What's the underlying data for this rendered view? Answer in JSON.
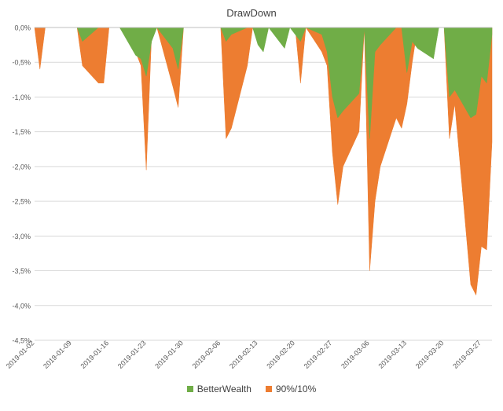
{
  "chart_data": {
    "type": "area",
    "title": "DrawDown",
    "xlabel": "",
    "ylabel": "",
    "ylim": [
      -4.5,
      0
    ],
    "yticks": [
      "0,0%",
      "-0,5%",
      "-1,0%",
      "-1,5%",
      "-2,0%",
      "-2,5%",
      "-3,0%",
      "-3,5%",
      "-4,0%",
      "-4,5%"
    ],
    "xlim": [
      "2019-01-02",
      "2019-03-29"
    ],
    "xticks": [
      "2019-01-02",
      "2019-01-09",
      "2019-01-16",
      "2019-01-23",
      "2019-01-30",
      "2019-02-06",
      "2019-02-13",
      "2019-02-20",
      "2019-02-27",
      "2019-03-06",
      "2019-03-13",
      "2019-03-20",
      "2019-03-27"
    ],
    "grid": true,
    "legend_position": "bottom",
    "series": [
      {
        "name": "90%/10%",
        "color": "#ED7D31",
        "points": [
          [
            "2019-01-02",
            0
          ],
          [
            "2019-01-03",
            -0.6
          ],
          [
            "2019-01-04",
            0
          ],
          [
            "2019-01-08",
            0
          ],
          [
            "2019-01-09",
            0
          ],
          [
            "2019-01-10",
            0
          ],
          [
            "2019-01-11",
            -0.55
          ],
          [
            "2019-01-14",
            -0.8
          ],
          [
            "2019-01-15",
            -0.8
          ],
          [
            "2019-01-16",
            0
          ],
          [
            "2019-01-18",
            0
          ],
          [
            "2019-01-21",
            -0.35
          ],
          [
            "2019-01-22",
            -0.55
          ],
          [
            "2019-01-23",
            -2.05
          ],
          [
            "2019-01-24",
            -0.1
          ],
          [
            "2019-01-25",
            0
          ],
          [
            "2019-01-28",
            -0.85
          ],
          [
            "2019-01-29",
            -1.15
          ],
          [
            "2019-01-30",
            0
          ],
          [
            "2019-02-06",
            0
          ],
          [
            "2019-02-07",
            -1.6
          ],
          [
            "2019-02-08",
            -1.45
          ],
          [
            "2019-02-11",
            -0.55
          ],
          [
            "2019-02-12",
            0
          ],
          [
            "2019-02-13",
            -0.15
          ],
          [
            "2019-02-14",
            -0.3
          ],
          [
            "2019-02-15",
            0
          ],
          [
            "2019-02-20",
            0
          ],
          [
            "2019-02-21",
            -0.8
          ],
          [
            "2019-02-22",
            0
          ],
          [
            "2019-02-25",
            -0.35
          ],
          [
            "2019-02-26",
            -0.55
          ],
          [
            "2019-02-27",
            -1.8
          ],
          [
            "2019-02-28",
            -2.55
          ],
          [
            "2019-03-01",
            -2.0
          ],
          [
            "2019-03-04",
            -1.5
          ],
          [
            "2019-03-05",
            0
          ],
          [
            "2019-03-06",
            -3.5
          ],
          [
            "2019-03-07",
            -2.5
          ],
          [
            "2019-03-08",
            -2.0
          ],
          [
            "2019-03-11",
            -1.3
          ],
          [
            "2019-03-12",
            -1.45
          ],
          [
            "2019-03-13",
            -1.1
          ],
          [
            "2019-03-14",
            -0.5
          ],
          [
            "2019-03-15",
            0
          ],
          [
            "2019-03-20",
            0
          ],
          [
            "2019-03-21",
            -1.6
          ],
          [
            "2019-03-22",
            -1.1
          ],
          [
            "2019-03-25",
            -3.7
          ],
          [
            "2019-03-26",
            -3.85
          ],
          [
            "2019-03-27",
            -3.15
          ],
          [
            "2019-03-28",
            -3.2
          ],
          [
            "2019-03-29",
            -1.65
          ]
        ]
      },
      {
        "name": "BetterWealth",
        "color": "#70AD47",
        "points": [
          [
            "2019-01-02",
            0
          ],
          [
            "2019-01-09",
            0
          ],
          [
            "2019-01-10",
            0
          ],
          [
            "2019-01-11",
            -0.2
          ],
          [
            "2019-01-14",
            0
          ],
          [
            "2019-01-16",
            0
          ],
          [
            "2019-01-18",
            0
          ],
          [
            "2019-01-21",
            -0.4
          ],
          [
            "2019-01-22",
            -0.45
          ],
          [
            "2019-01-23",
            -0.7
          ],
          [
            "2019-01-24",
            -0.2
          ],
          [
            "2019-01-25",
            0
          ],
          [
            "2019-01-28",
            -0.3
          ],
          [
            "2019-01-29",
            -0.6
          ],
          [
            "2019-01-30",
            0
          ],
          [
            "2019-02-06",
            0
          ],
          [
            "2019-02-07",
            -0.2
          ],
          [
            "2019-02-08",
            -0.1
          ],
          [
            "2019-02-11",
            0
          ],
          [
            "2019-02-12",
            0
          ],
          [
            "2019-02-13",
            -0.25
          ],
          [
            "2019-02-14",
            -0.35
          ],
          [
            "2019-02-15",
            0
          ],
          [
            "2019-02-18",
            -0.3
          ],
          [
            "2019-02-19",
            0
          ],
          [
            "2019-02-20",
            -0.1
          ],
          [
            "2019-02-21",
            -0.2
          ],
          [
            "2019-02-22",
            0
          ],
          [
            "2019-02-25",
            -0.1
          ],
          [
            "2019-02-26",
            -0.35
          ],
          [
            "2019-02-27",
            -1.0
          ],
          [
            "2019-02-28",
            -1.3
          ],
          [
            "2019-03-01",
            -1.2
          ],
          [
            "2019-03-04",
            -0.95
          ],
          [
            "2019-03-05",
            0
          ],
          [
            "2019-03-06",
            -1.6
          ],
          [
            "2019-03-07",
            -0.35
          ],
          [
            "2019-03-08",
            -0.25
          ],
          [
            "2019-03-11",
            0
          ],
          [
            "2019-03-12",
            0
          ],
          [
            "2019-03-13",
            -0.65
          ],
          [
            "2019-03-14",
            -0.2
          ],
          [
            "2019-03-15",
            -0.3
          ],
          [
            "2019-03-18",
            -0.45
          ],
          [
            "2019-03-19",
            0
          ],
          [
            "2019-03-20",
            0
          ],
          [
            "2019-03-21",
            -1.0
          ],
          [
            "2019-03-22",
            -0.9
          ],
          [
            "2019-03-25",
            -1.3
          ],
          [
            "2019-03-26",
            -1.25
          ],
          [
            "2019-03-27",
            -0.7
          ],
          [
            "2019-03-28",
            -0.8
          ],
          [
            "2019-03-29",
            -0.1
          ]
        ]
      }
    ],
    "legend_order": [
      "BetterWealth",
      "90%/10%"
    ]
  }
}
